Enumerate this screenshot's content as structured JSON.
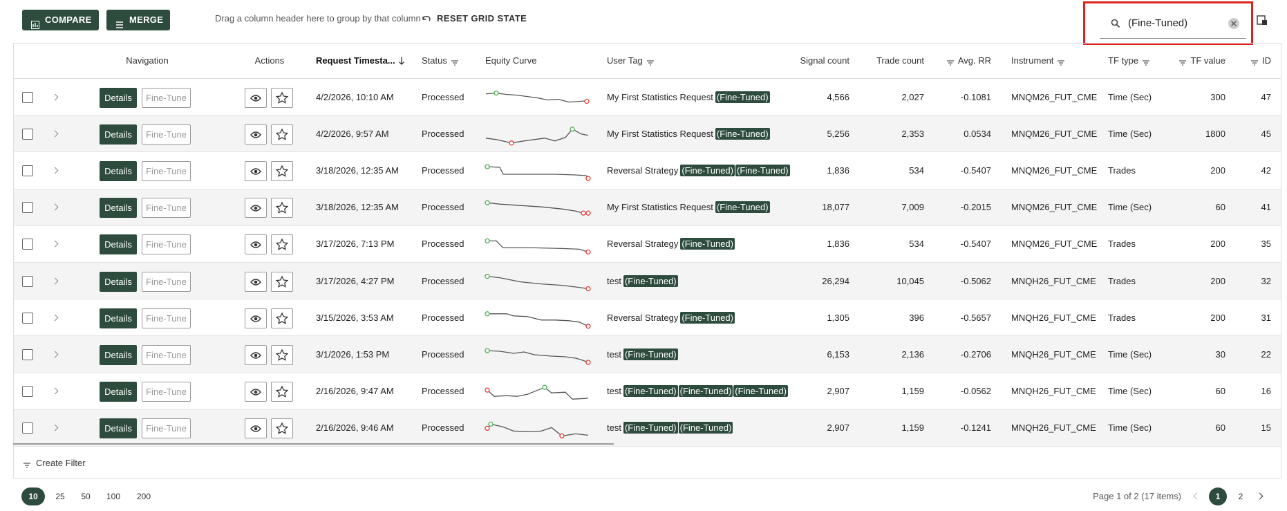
{
  "toolbar": {
    "compare": "COMPARE",
    "merge": "MERGE",
    "group_hint": "Drag a column header here to group by that column",
    "reset": "RESET GRID STATE",
    "search": "(Fine-Tuned)"
  },
  "table": {
    "columns": [
      "Navigation",
      "Actions",
      "Request Timesta...",
      "Status",
      "Equity Curve",
      "User Tag",
      "Signal count",
      "Trade count",
      "Avg. RR",
      "Instrument",
      "TF type",
      "TF value",
      "ID"
    ],
    "row_actions": {
      "details": "Details",
      "fine_tune": "Fine-Tune"
    },
    "rows": [
      {
        "timestamp": "4/2/2026, 10:10 AM",
        "status": "Processed",
        "tag": "My First Statistics Request",
        "highlights": [
          "(Fine-Tuned)"
        ],
        "signal_count": "4,566",
        "trade_count": "2,027",
        "avg_rr": "-0.1081",
        "instrument": "MNQM26_FUT_CME",
        "tf_type": "Time (Sec)",
        "tf_value": "300",
        "id": "47"
      },
      {
        "timestamp": "4/2/2026, 9:57 AM",
        "status": "Processed",
        "tag": "My First Statistics Request",
        "highlights": [
          "(Fine-Tuned)"
        ],
        "signal_count": "5,256",
        "trade_count": "2,353",
        "avg_rr": "0.0534",
        "instrument": "MNQM26_FUT_CME",
        "tf_type": "Time (Sec)",
        "tf_value": "1800",
        "id": "45"
      },
      {
        "timestamp": "3/18/2026, 12:35 AM",
        "status": "Processed",
        "tag": "Reversal Strategy",
        "highlights": [
          "(Fine-Tuned)",
          "(Fine-Tuned)"
        ],
        "signal_count": "1,836",
        "trade_count": "534",
        "avg_rr": "-0.5407",
        "instrument": "MNQM26_FUT_CME",
        "tf_type": "Trades",
        "tf_value": "200",
        "id": "42"
      },
      {
        "timestamp": "3/18/2026, 12:35 AM",
        "status": "Processed",
        "tag": "My First Statistics Request",
        "highlights": [
          "(Fine-Tuned)"
        ],
        "signal_count": "18,077",
        "trade_count": "7,009",
        "avg_rr": "-0.2015",
        "instrument": "MNQM26_FUT_CME",
        "tf_type": "Time (Sec)",
        "tf_value": "60",
        "id": "41"
      },
      {
        "timestamp": "3/17/2026, 7:13 PM",
        "status": "Processed",
        "tag": "Reversal Strategy",
        "highlights": [
          "(Fine-Tuned)"
        ],
        "signal_count": "1,836",
        "trade_count": "534",
        "avg_rr": "-0.5407",
        "instrument": "MNQM26_FUT_CME",
        "tf_type": "Trades",
        "tf_value": "200",
        "id": "35"
      },
      {
        "timestamp": "3/17/2026, 4:27 PM",
        "status": "Processed",
        "tag": "test",
        "highlights": [
          "(Fine-Tuned)"
        ],
        "signal_count": "26,294",
        "trade_count": "10,045",
        "avg_rr": "-0.5062",
        "instrument": "MNQH26_FUT_CME",
        "tf_type": "Trades",
        "tf_value": "200",
        "id": "32"
      },
      {
        "timestamp": "3/15/2026, 3:53 AM",
        "status": "Processed",
        "tag": "Reversal Strategy",
        "highlights": [
          "(Fine-Tuned)"
        ],
        "signal_count": "1,305",
        "trade_count": "396",
        "avg_rr": "-0.5657",
        "instrument": "MNQH26_FUT_CME",
        "tf_type": "Trades",
        "tf_value": "200",
        "id": "31"
      },
      {
        "timestamp": "3/1/2026, 1:53 PM",
        "status": "Processed",
        "tag": "test",
        "highlights": [
          "(Fine-Tuned)"
        ],
        "signal_count": "6,153",
        "trade_count": "2,136",
        "avg_rr": "-0.2706",
        "instrument": "MNQH26_FUT_CME",
        "tf_type": "Time (Sec)",
        "tf_value": "30",
        "id": "22"
      },
      {
        "timestamp": "2/16/2026, 9:47 AM",
        "status": "Processed",
        "tag": "test",
        "highlights": [
          "(Fine-Tuned)",
          "(Fine-Tuned)",
          "(Fine-Tuned)"
        ],
        "signal_count": "2,907",
        "trade_count": "1,159",
        "avg_rr": "-0.0562",
        "instrument": "MNQH26_FUT_CME",
        "tf_type": "Time (Sec)",
        "tf_value": "60",
        "id": "16"
      },
      {
        "timestamp": "2/16/2026, 9:46 AM",
        "status": "Processed",
        "tag": "test",
        "highlights": [
          "(Fine-Tuned)",
          "(Fine-Tuned)"
        ],
        "signal_count": "2,907",
        "trade_count": "1,159",
        "avg_rr": "-0.1241",
        "instrument": "MNQH26_FUT_CME",
        "tf_type": "Time (Sec)",
        "tf_value": "60",
        "id": "15"
      }
    ],
    "create_filter": "Create Filter"
  },
  "pagination": {
    "sizes": [
      "10",
      "25",
      "50",
      "100",
      "200"
    ],
    "summary": "Page 1 of 2 (17 items)",
    "pages": [
      "1",
      "2"
    ]
  }
}
